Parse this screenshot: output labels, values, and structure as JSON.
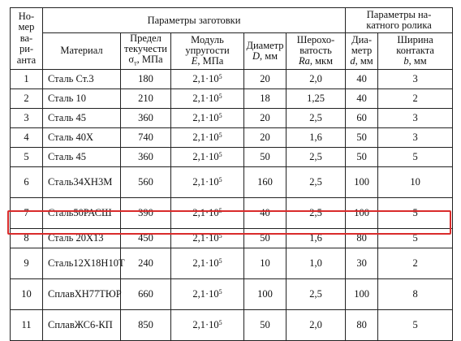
{
  "header": {
    "variant": [
      "Но-",
      "мер",
      "ва-",
      "ри-",
      "анта"
    ],
    "group_blank": "Параметры заготовки",
    "group_roller": [
      "Параметры на-",
      "катного ролика"
    ],
    "material": "Материал",
    "yield": [
      "Предел",
      "текучести",
      "σ",
      "т",
      ", МПа"
    ],
    "modulus": [
      "Модуль",
      "упругости",
      "E",
      ", МПа"
    ],
    "diameter": [
      "Диаметр",
      "D",
      ", мм"
    ],
    "roughness": [
      "Шерохо-",
      "ватость",
      "Ra",
      ", мкм"
    ],
    "roller_diameter": [
      "Диа-",
      "метр",
      "d",
      ", мм"
    ],
    "contact_width": [
      "Ширина",
      "контакта",
      "b",
      ", мм"
    ]
  },
  "rows": [
    {
      "n": "1",
      "m": "Сталь Ст.3",
      "sigma": "180",
      "e": "2,1·10",
      "ex": "5",
      "D": "20",
      "ra": "2,0",
      "d": "40",
      "b": "3"
    },
    {
      "n": "2",
      "m": "Сталь 10",
      "sigma": "210",
      "e": "2,1·10",
      "ex": "5",
      "D": "18",
      "ra": "1,25",
      "d": "40",
      "b": "2"
    },
    {
      "n": "3",
      "m": "Сталь 45",
      "sigma": "360",
      "e": "2,1·10",
      "ex": "5",
      "D": "20",
      "ra": "2,5",
      "d": "60",
      "b": "3"
    },
    {
      "n": "4",
      "m": "Сталь 40Х",
      "sigma": "740",
      "e": "2,1·10",
      "ex": "5",
      "D": "20",
      "ra": "1,6",
      "d": "50",
      "b": "3"
    },
    {
      "n": "5",
      "m": "Сталь 45",
      "sigma": "360",
      "e": "2,1·10",
      "ex": "5",
      "D": "50",
      "ra": "2,5",
      "d": "50",
      "b": "5"
    },
    {
      "n": "6",
      "m1": "Сталь",
      "m2": "34ХН3М",
      "sigma": "560",
      "e": "2,1·10",
      "ex": "5",
      "D": "160",
      "ra": "2,5",
      "d": "100",
      "b": "10"
    },
    {
      "n": "7",
      "m1": "Сталь",
      "m2": "50РАСШ",
      "sigma": "390",
      "e": "2,1·10",
      "ex": "5",
      "D": "40",
      "ra": "2,5",
      "d": "100",
      "b": "5"
    },
    {
      "n": "8",
      "m": "Сталь 20Х13",
      "sigma": "450",
      "e": "2,1·10",
      "ex": "5",
      "D": "50",
      "ra": "1,6",
      "d": "80",
      "b": "5"
    },
    {
      "n": "9",
      "m1": "Сталь",
      "m2": "12Х18Н10Т",
      "sigma": "240",
      "e": "2,1·10",
      "ex": "5",
      "D": "10",
      "ra": "1,0",
      "d": "30",
      "b": "2"
    },
    {
      "n": "10",
      "m1": "Сплав",
      "m2": "ХН77ТЮР",
      "sigma": "660",
      "e": "2,1·10",
      "ex": "5",
      "D": "100",
      "ra": "2,5",
      "d": "100",
      "b": "8"
    },
    {
      "n": "11",
      "m1": "Сплав",
      "m2": "ЖС6-КП",
      "sigma": "850",
      "e": "2,1·10",
      "ex": "5",
      "D": "50",
      "ra": "2,0",
      "d": "80",
      "b": "5"
    }
  ],
  "highlight_color": "#d92b2b"
}
